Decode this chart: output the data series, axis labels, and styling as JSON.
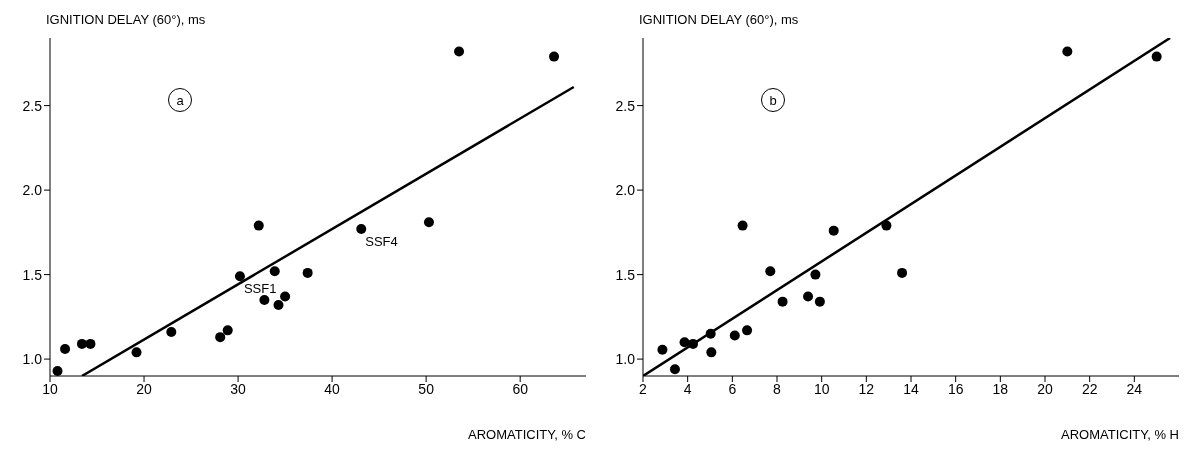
{
  "chart_data": [
    {
      "type": "scatter",
      "ylabel": "IGNITION DELAY (60°), ms",
      "xlabel": "AROMATICITY, % C",
      "xlim": [
        10,
        67
      ],
      "xticks": [
        10,
        20,
        30,
        40,
        50,
        60
      ],
      "ylim": [
        0.9,
        2.9
      ],
      "yticks": [
        {
          "value": 1,
          "label": "1.0"
        },
        {
          "value": 1.5,
          "label": "1.5"
        },
        {
          "value": 2,
          "label": "2.0"
        },
        {
          "value": 2.5,
          "label": "2.5"
        }
      ],
      "annotations": [
        "a",
        {
          "text": "SSF1",
          "x": 30.2,
          "y": 1.49
        },
        {
          "text": "SSF4",
          "x": 43.1,
          "y": 1.77
        }
      ],
      "series": [
        {
          "marker": "circle",
          "color": "#000000",
          "x": [
            10.8,
            11.6,
            13.4,
            14.3,
            19.2,
            22.9,
            28.1,
            28.9,
            30.2,
            32.2,
            33.9,
            32.8,
            34.3,
            35.0,
            37.4,
            43.1,
            50.3,
            53.5,
            63.6
          ],
          "values": [
            0.93,
            1.06,
            1.09,
            1.09,
            1.04,
            1.16,
            1.13,
            1.17,
            1.49,
            1.79,
            1.52,
            1.35,
            1.32,
            1.37,
            1.51,
            1.77,
            1.81,
            2.82,
            2.79
          ]
        },
        {
          "type": "line",
          "color": "#000000",
          "x": [
            13.4,
            65.7
          ],
          "values": [
            0.9,
            2.61
          ]
        }
      ]
    },
    {
      "type": "scatter",
      "ylabel": "IGNITION DELAY (60°), ms",
      "xlabel": "AROMATICITY, % H",
      "xlim": [
        2,
        26
      ],
      "xticks": [
        2,
        4,
        6,
        8,
        10,
        12,
        14,
        16,
        18,
        20,
        22,
        24
      ],
      "ylim": [
        0.9,
        2.9
      ],
      "yticks": [
        {
          "value": 1,
          "label": "1.0"
        },
        {
          "value": 1.5,
          "label": "1.5"
        },
        {
          "value": 2,
          "label": "2.0"
        },
        {
          "value": 2.5,
          "label": "2.5"
        }
      ],
      "annotations": [
        "b"
      ],
      "series": [
        {
          "marker": "circle",
          "color": "#000000",
          "x": [
            2.87,
            3.43,
            3.86,
            4.24,
            5.03,
            5.06,
            6.11,
            6.66,
            6.46,
            7.7,
            8.25,
            9.39,
            9.72,
            9.92,
            10.54,
            12.9,
            13.6,
            21.0,
            25.0
          ],
          "values": [
            1.055,
            0.94,
            1.1,
            1.09,
            1.15,
            1.04,
            1.14,
            1.17,
            1.79,
            1.52,
            1.34,
            1.37,
            1.5,
            1.34,
            1.76,
            1.79,
            1.51,
            2.82,
            2.79
          ]
        },
        {
          "type": "line",
          "color": "#000000",
          "x": [
            2,
            25.6
          ],
          "values": [
            0.9,
            2.9
          ]
        }
      ]
    }
  ]
}
